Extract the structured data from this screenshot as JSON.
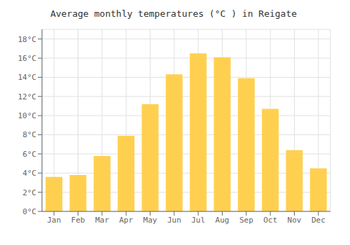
{
  "chart_data": {
    "type": "bar",
    "title": "Average monthly temperatures (°C ) in Reigate",
    "categories": [
      "Jan",
      "Feb",
      "Mar",
      "Apr",
      "May",
      "Jun",
      "Jul",
      "Aug",
      "Sep",
      "Oct",
      "Nov",
      "Dec"
    ],
    "values": [
      3.6,
      3.8,
      5.8,
      7.9,
      11.2,
      14.3,
      16.5,
      16.1,
      13.9,
      10.7,
      6.4,
      4.5
    ],
    "color": "#FFD050",
    "ylim": [
      0,
      19
    ],
    "yticks": [
      {
        "value": 0,
        "label": "0°C"
      },
      {
        "value": 2,
        "label": "2°C"
      },
      {
        "value": 4,
        "label": "4°C"
      },
      {
        "value": 6,
        "label": "6°C"
      },
      {
        "value": 8,
        "label": "8°C"
      },
      {
        "value": 10,
        "label": "10°C"
      },
      {
        "value": 12,
        "label": "12°C"
      },
      {
        "value": 14,
        "label": "14°C"
      },
      {
        "value": 16,
        "label": "16°C"
      },
      {
        "value": 18,
        "label": "18°C"
      }
    ],
    "grid": true
  }
}
